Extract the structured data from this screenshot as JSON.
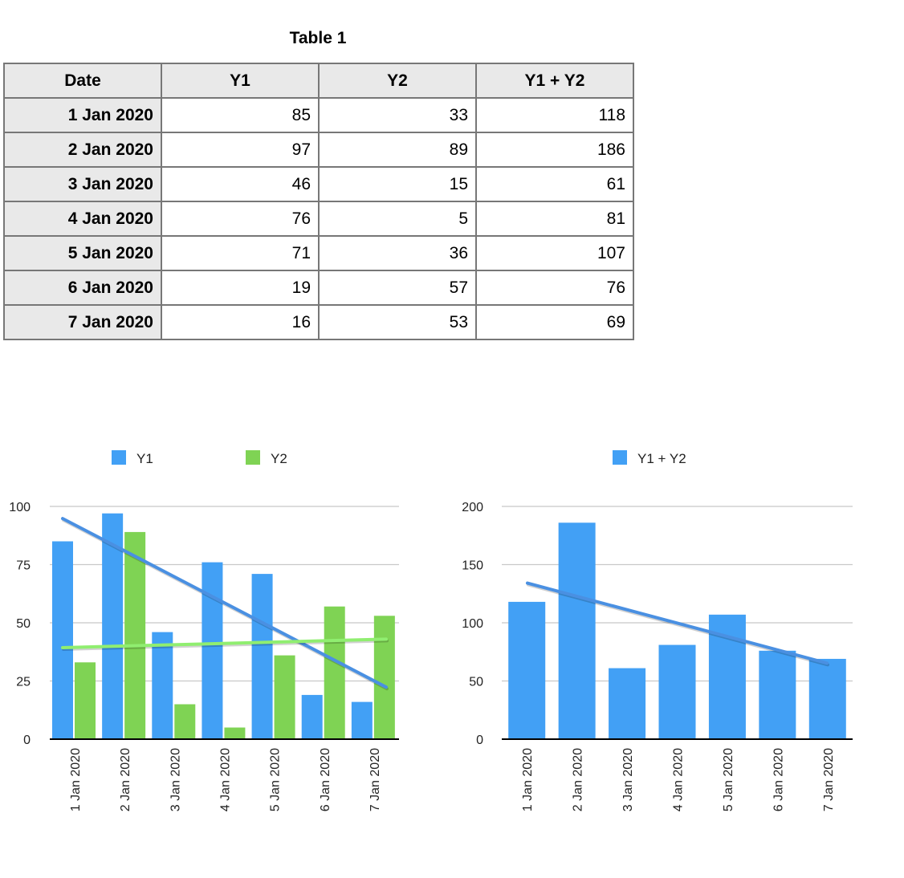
{
  "table": {
    "title": "Table 1",
    "headers": [
      "Date",
      "Y1",
      "Y2",
      "Y1 + Y2"
    ],
    "rows": [
      [
        "1 Jan 2020",
        "85",
        "33",
        "118"
      ],
      [
        "2 Jan 2020",
        "97",
        "89",
        "186"
      ],
      [
        "3 Jan 2020",
        "46",
        "15",
        "61"
      ],
      [
        "4 Jan 2020",
        "76",
        "5",
        "81"
      ],
      [
        "5 Jan 2020",
        "71",
        "36",
        "107"
      ],
      [
        "6 Jan 2020",
        "19",
        "57",
        "76"
      ],
      [
        "7 Jan 2020",
        "16",
        "53",
        "69"
      ]
    ]
  },
  "chart_data": [
    {
      "type": "bar",
      "categories": [
        "1 Jan 2020",
        "2 Jan 2020",
        "3 Jan 2020",
        "4 Jan 2020",
        "5 Jan 2020",
        "6 Jan 2020",
        "7 Jan 2020"
      ],
      "series": [
        {
          "name": "Y1",
          "values": [
            85,
            97,
            46,
            76,
            71,
            19,
            16
          ],
          "color": "#42a0f5",
          "trendline_color": "#4a90e2"
        },
        {
          "name": "Y2",
          "values": [
            33,
            89,
            15,
            5,
            36,
            57,
            53
          ],
          "color": "#7fd354",
          "trendline_color": "#90ee70"
        }
      ],
      "yticks": [
        0,
        25,
        50,
        75,
        100
      ],
      "ylim": [
        0,
        100
      ],
      "trendlines": true,
      "grid": true,
      "legend": "top"
    },
    {
      "type": "bar",
      "categories": [
        "1 Jan 2020",
        "2 Jan 2020",
        "3 Jan 2020",
        "4 Jan 2020",
        "5 Jan 2020",
        "6 Jan 2020",
        "7 Jan 2020"
      ],
      "series": [
        {
          "name": "Y1 + Y2",
          "values": [
            118,
            186,
            61,
            81,
            107,
            76,
            69
          ],
          "color": "#42a0f5",
          "trendline_color": "#4a90e2"
        }
      ],
      "yticks": [
        0,
        50,
        100,
        150,
        200
      ],
      "ylim": [
        0,
        200
      ],
      "trendlines": true,
      "grid": true,
      "legend": "top"
    }
  ]
}
